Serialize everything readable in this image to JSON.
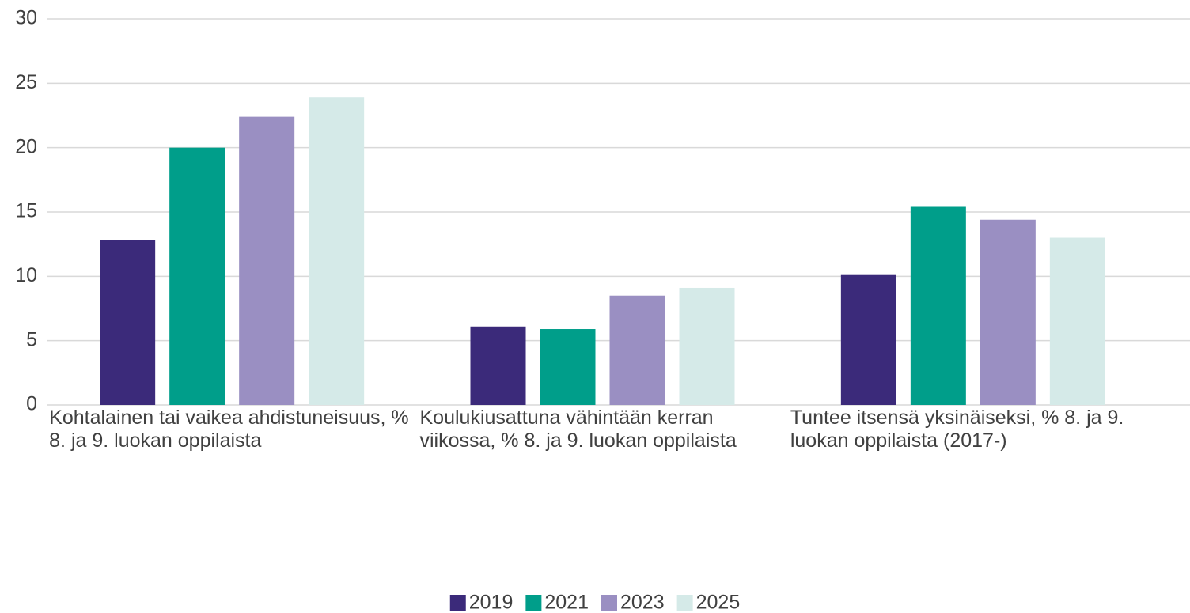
{
  "chart_data": {
    "type": "bar",
    "categories": [
      "Kohtalainen tai vaikea ahdistuneisuus, % 8. ja 9. luokan oppilaista",
      "Koulukiusattuna vähintään kerran viikossa, % 8. ja 9. luokan oppilaista",
      "Tuntee itsensä yksinäiseksi, % 8. ja 9. luokan oppilaista (2017-)"
    ],
    "series": [
      {
        "name": "2019",
        "color": "#3b2a7a",
        "values": [
          12.8,
          6.1,
          10.1
        ]
      },
      {
        "name": "2021",
        "color": "#009e8a",
        "values": [
          20.0,
          5.9,
          15.4
        ]
      },
      {
        "name": "2023",
        "color": "#9a8fc2",
        "values": [
          22.4,
          8.5,
          14.4
        ]
      },
      {
        "name": "2025",
        "color": "#d5eae8",
        "values": [
          23.9,
          9.1,
          13.0
        ]
      }
    ],
    "ylim": [
      0,
      30
    ],
    "yticks": [
      0,
      5,
      10,
      15,
      20,
      25,
      30
    ],
    "grid": true,
    "legend": "bottom"
  }
}
